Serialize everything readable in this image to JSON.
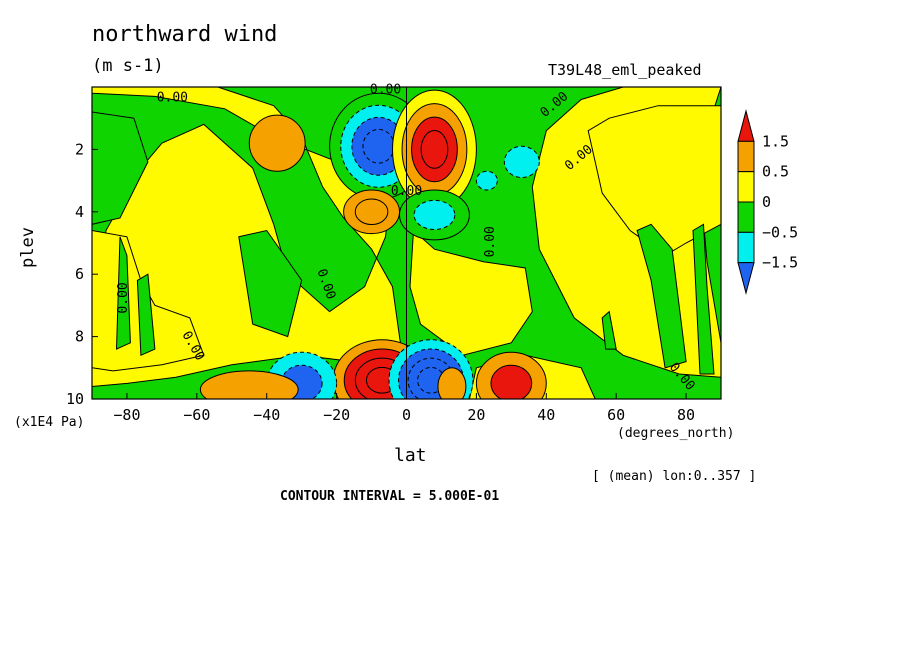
{
  "header": {
    "title": "northward wind",
    "units": "(m s-1)",
    "experiment": "T39L48_eml_peaked"
  },
  "footer": {
    "mean_note": "[ (mean) lon:0..357 ]",
    "contour_interval": "CONTOUR INTERVAL = 5.000E-01"
  },
  "colors": {
    "red": "#e8160c",
    "orange": "#f5a100",
    "yellow": "#fffa00",
    "green": "#10d400",
    "cyan": "#00f0f0",
    "blue": "#1e64f0"
  },
  "chart_data": {
    "type": "heatmap",
    "title": "northward wind",
    "units": "(m s-1)",
    "xlabel": "lat",
    "xunit": "(degrees_north)",
    "ylabel": "plev",
    "yunit": "(x1E4 Pa)",
    "xlim": [
      -90,
      90
    ],
    "ylim": [
      10,
      0
    ],
    "xticks": [
      -80,
      -60,
      -40,
      -20,
      0,
      20,
      40,
      60,
      80
    ],
    "yticks": [
      2,
      4,
      6,
      8,
      10
    ],
    "contour_interval": 0.5,
    "colorbar": {
      "labels": [
        "1.5",
        "0.5",
        "0",
        "-0.5",
        "-1.5"
      ],
      "colors": [
        "#e8160c",
        "#f5a100",
        "#fffa00",
        "#10d400",
        "#00f0f0",
        "#1e64f0"
      ]
    },
    "contour_labels": [
      "0.00",
      "0.00",
      "0.00",
      "0.00",
      "0.00",
      "0.00",
      "0.00",
      "0.00",
      "0.00",
      "0.00"
    ]
  }
}
